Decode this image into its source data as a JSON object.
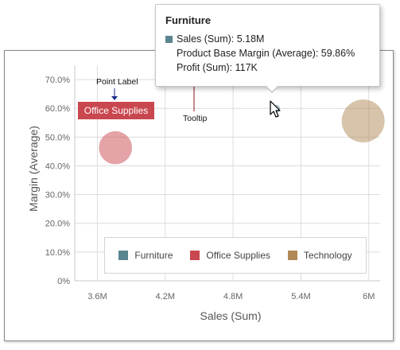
{
  "chart_data": {
    "type": "scatter",
    "xlabel": "Sales (Sum)",
    "ylabel": "Margin (Average)",
    "xlim": [
      3.4,
      6.1
    ],
    "ylim": [
      0,
      75
    ],
    "x_ticks": [
      3.6,
      4.2,
      4.8,
      5.4,
      6.0
    ],
    "x_tick_labels": [
      "3.6M",
      "4.2M",
      "4.8M",
      "5.4M",
      "6M"
    ],
    "y_ticks": [
      0,
      10,
      20,
      30,
      40,
      50,
      60,
      70
    ],
    "y_tick_labels": [
      "0%",
      "10.0%",
      "20.0%",
      "30.0%",
      "40.0%",
      "50.0%",
      "60.0%",
      "70.0%"
    ],
    "grid": true,
    "legend_placement": "bottom-center",
    "series": [
      {
        "name": "Furniture",
        "color": "#5a8590",
        "points": [
          {
            "x": 5.18,
            "y": 59.86,
            "size": 117
          }
        ]
      },
      {
        "name": "Office Supplies",
        "color": "#c9474f",
        "points": [
          {
            "x": 3.76,
            "y": 46.3,
            "size": 250
          }
        ]
      },
      {
        "name": "Technology",
        "color": "#b08a55",
        "points": [
          {
            "x": 5.95,
            "y": 55.6,
            "size": 420
          }
        ]
      }
    ]
  },
  "annotations": {
    "point_label_caption": "Point Label",
    "tooltip_caption": "Tooltip",
    "point_label_text": "Office Supplies"
  },
  "tooltip": {
    "title": "Furniture",
    "rows": [
      "Sales (Sum): 5.18M",
      "Product Base Margin (Average): 59.86%",
      "Profit (Sum): 117K"
    ],
    "swatch_color": "#5a8590"
  },
  "legend": {
    "items": [
      {
        "label": "Furniture",
        "color": "#5a8590"
      },
      {
        "label": "Office Supplies",
        "color": "#c9474f"
      },
      {
        "label": "Technology",
        "color": "#b08a55"
      }
    ]
  }
}
